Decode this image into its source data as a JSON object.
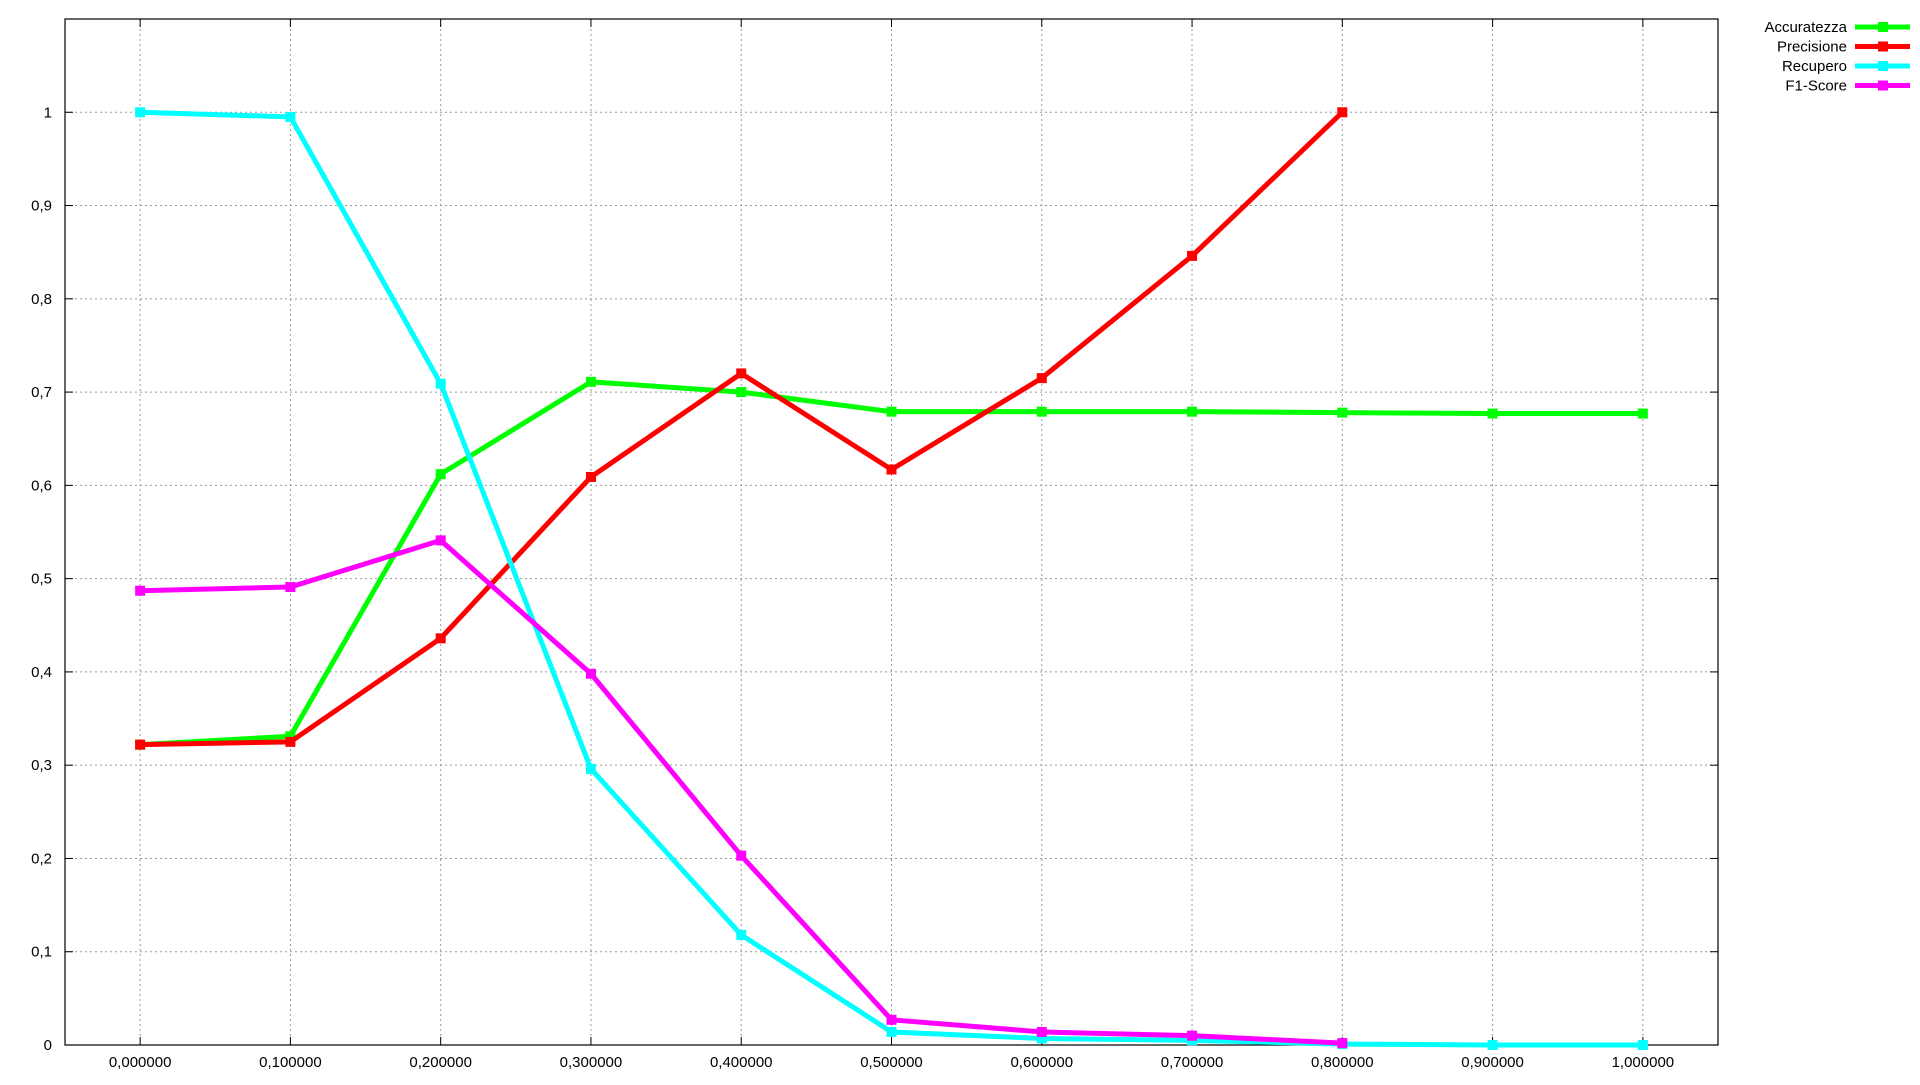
{
  "chart_data": {
    "type": "line",
    "title": "",
    "xlabel": "",
    "ylabel": "",
    "x": [
      0.0,
      0.1,
      0.2,
      0.3,
      0.4,
      0.5,
      0.6,
      0.7,
      0.8,
      0.9,
      1.0
    ],
    "xlim": [
      -0.05,
      1.05
    ],
    "ylim": [
      0,
      1.1
    ],
    "x_tick_labels": [
      "0,000000",
      "0,100000",
      "0,200000",
      "0,300000",
      "0,400000",
      "0,500000",
      "0,600000",
      "0,700000",
      "0,800000",
      "0,900000",
      "1,000000"
    ],
    "y_ticks": [
      0,
      0.1,
      0.2,
      0.3,
      0.4,
      0.5,
      0.6,
      0.7,
      0.8,
      0.9,
      1
    ],
    "y_tick_labels": [
      "0",
      "0,1",
      "0,2",
      "0,3",
      "0,4",
      "0,5",
      "0,6",
      "0,7",
      "0,8",
      "0,9",
      "1"
    ],
    "grid": true,
    "legend_position": "top-right-outside",
    "series": [
      {
        "name": "Accuratezza",
        "color": "#00ff00",
        "values": [
          0.322,
          0.331,
          0.612,
          0.711,
          0.7,
          0.679,
          0.679,
          0.679,
          0.678,
          0.677,
          0.677
        ]
      },
      {
        "name": "Precisione",
        "color": "#ff0000",
        "values": [
          0.322,
          0.325,
          0.436,
          0.609,
          0.72,
          0.617,
          0.715,
          0.846,
          1.0,
          null,
          null
        ]
      },
      {
        "name": "Recupero",
        "color": "#00ffff",
        "values": [
          1.0,
          0.995,
          0.709,
          0.296,
          0.118,
          0.014,
          0.007,
          0.005,
          0.001,
          0.0,
          0.0
        ]
      },
      {
        "name": "F1-Score",
        "color": "#ff00ff",
        "values": [
          0.487,
          0.491,
          0.541,
          0.398,
          0.203,
          0.027,
          0.014,
          0.01,
          0.002,
          null,
          null
        ]
      }
    ]
  }
}
